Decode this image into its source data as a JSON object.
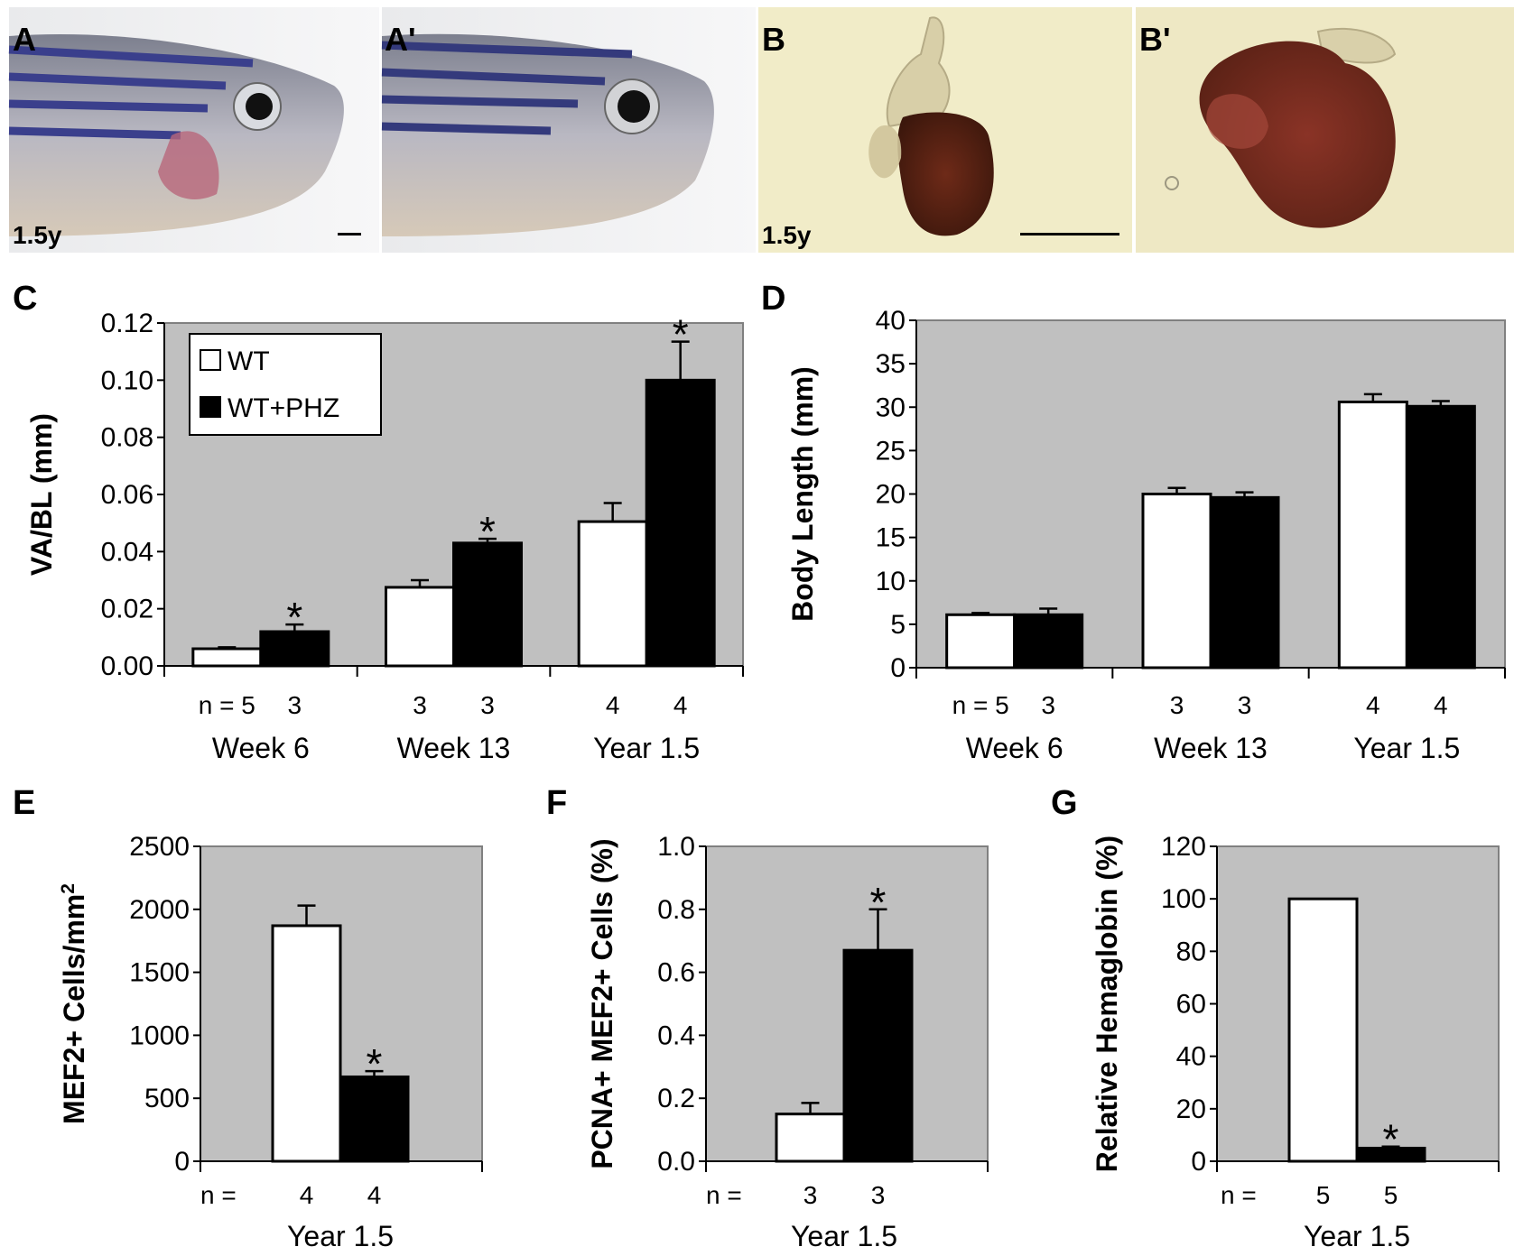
{
  "photos": {
    "A": {
      "letter": "A",
      "age_label": "1.5y"
    },
    "A_prime": {
      "letter": "A'"
    },
    "B": {
      "letter": "B",
      "age_label": "1.5y"
    },
    "B_prime": {
      "letter": "B'"
    }
  },
  "colors": {
    "plot_bg": "#c0c0c0",
    "wt_fill": "#ffffff",
    "phz_fill": "#000000",
    "asterisk": "#ffffff"
  },
  "chart_data": [
    {
      "panel": "C",
      "type": "bar",
      "ylabel": "VA/BL (mm)",
      "ylim": [
        0,
        0.12
      ],
      "yticks": [
        "0.00",
        "0.02",
        "0.04",
        "0.06",
        "0.08",
        "0.10",
        "0.12"
      ],
      "n_label_prefix": "n = ",
      "legend": {
        "position": "top-left",
        "entries": [
          "WT",
          "WT+PHZ"
        ]
      },
      "groups": [
        {
          "label": "Week 6",
          "n": [
            "5",
            "3"
          ]
        },
        {
          "label": "Week 13",
          "n": [
            "3",
            "3"
          ]
        },
        {
          "label": "Year 1.5",
          "n": [
            "4",
            "4"
          ]
        }
      ],
      "series": [
        {
          "name": "WT",
          "values": [
            0.006,
            0.0275,
            0.0505
          ],
          "errors": [
            0.0005,
            0.0025,
            0.0065
          ],
          "significant": [
            false,
            false,
            false
          ]
        },
        {
          "name": "WT+PHZ",
          "values": [
            0.012,
            0.043,
            0.1
          ],
          "errors": [
            0.0025,
            0.0015,
            0.0135
          ],
          "significant": [
            true,
            true,
            true
          ]
        }
      ],
      "significance_marker": "*"
    },
    {
      "panel": "D",
      "type": "bar",
      "ylabel": "Body Length (mm)",
      "ylim": [
        0,
        40
      ],
      "yticks": [
        "0",
        "5",
        "10",
        "15",
        "20",
        "25",
        "30",
        "35",
        "40"
      ],
      "n_label_prefix": "n = ",
      "groups": [
        {
          "label": "Week 6",
          "n": [
            "5",
            "3"
          ]
        },
        {
          "label": "Week 13",
          "n": [
            "3",
            "3"
          ]
        },
        {
          "label": "Year 1.5",
          "n": [
            "4",
            "4"
          ]
        }
      ],
      "series": [
        {
          "name": "WT",
          "values": [
            6.1,
            20.0,
            30.6
          ],
          "errors": [
            0.2,
            0.7,
            0.9
          ],
          "significant": [
            false,
            false,
            false
          ]
        },
        {
          "name": "WT+PHZ",
          "values": [
            6.1,
            19.6,
            30.1
          ],
          "errors": [
            0.7,
            0.6,
            0.6
          ],
          "significant": [
            false,
            false,
            false
          ]
        }
      ],
      "significance_marker": "*"
    },
    {
      "panel": "E",
      "type": "bar",
      "ylabel": "MEF2+ Cells/mm",
      "ylabel_sup": "2",
      "ylim": [
        0,
        2500
      ],
      "yticks": [
        "0",
        "500",
        "1000",
        "1500",
        "2000",
        "2500"
      ],
      "n_label_prefix": "n =",
      "groups": [
        {
          "label": "Year 1.5",
          "n": [
            "4",
            "4"
          ]
        }
      ],
      "series": [
        {
          "name": "WT",
          "values": [
            1870
          ],
          "errors": [
            160
          ],
          "significant": [
            false
          ]
        },
        {
          "name": "WT+PHZ",
          "values": [
            670
          ],
          "errors": [
            45
          ],
          "significant": [
            true
          ]
        }
      ],
      "significance_marker": "*"
    },
    {
      "panel": "F",
      "type": "bar",
      "ylabel": "PCNA+ MEF2+ Cells (%)",
      "ylim": [
        0,
        1.0
      ],
      "yticks": [
        "0.0",
        "0.2",
        "0.4",
        "0.6",
        "0.8",
        "1.0"
      ],
      "n_label_prefix": "n =",
      "groups": [
        {
          "label": "Year 1.5",
          "n": [
            "3",
            "3"
          ]
        }
      ],
      "series": [
        {
          "name": "WT",
          "values": [
            0.15
          ],
          "errors": [
            0.035
          ],
          "significant": [
            false
          ]
        },
        {
          "name": "WT+PHZ",
          "values": [
            0.67
          ],
          "errors": [
            0.13
          ],
          "significant": [
            true
          ]
        }
      ],
      "significance_marker": "*"
    },
    {
      "panel": "G",
      "type": "bar",
      "ylabel": "Relative Hemaglobin (%)",
      "ylim": [
        0,
        120
      ],
      "yticks": [
        "0",
        "20",
        "40",
        "60",
        "80",
        "100",
        "120"
      ],
      "n_label_prefix": "n =",
      "groups": [
        {
          "label": "Year 1.5",
          "n": [
            "5",
            "5"
          ]
        }
      ],
      "series": [
        {
          "name": "WT",
          "values": [
            100
          ],
          "errors": [
            0
          ],
          "significant": [
            false
          ]
        },
        {
          "name": "WT+PHZ",
          "values": [
            5
          ],
          "errors": [
            0.6
          ],
          "significant": [
            true
          ]
        }
      ],
      "significance_marker": "*"
    }
  ]
}
